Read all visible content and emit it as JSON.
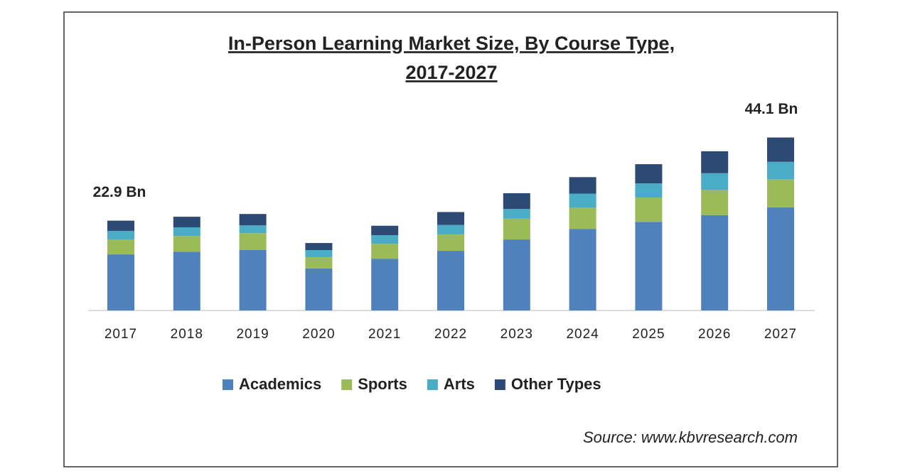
{
  "chart_data": {
    "type": "stacked_bar",
    "title": [
      "In-Person Learning Market Size, By Course Type,",
      "2017-2027"
    ],
    "categories": [
      "2017",
      "2018",
      "2019",
      "2020",
      "2021",
      "2022",
      "2023",
      "2024",
      "2025",
      "2026",
      "2027"
    ],
    "series": [
      {
        "name": "Academics",
        "color": "#4f81bd",
        "values": [
          14.3,
          15.0,
          15.4,
          10.7,
          13.2,
          15.2,
          18.1,
          20.8,
          22.6,
          24.3,
          26.3
        ]
      },
      {
        "name": "Sports",
        "color": "#9bbb59",
        "values": [
          3.8,
          4.0,
          4.3,
          2.9,
          3.8,
          4.2,
          5.3,
          5.4,
          6.2,
          6.5,
          7.1
        ]
      },
      {
        "name": "Arts",
        "color": "#4bacc6",
        "values": [
          2.2,
          2.2,
          2.0,
          1.8,
          2.2,
          2.4,
          2.5,
          3.6,
          3.6,
          4.2,
          4.5
        ]
      },
      {
        "name": "Other Types",
        "color": "#2c4a74",
        "values": [
          2.6,
          2.7,
          2.9,
          1.8,
          2.4,
          3.3,
          4.0,
          4.2,
          4.9,
          5.6,
          6.2
        ]
      }
    ],
    "ylim": [
      0,
      48
    ],
    "annotations": [
      "22.9 Bn",
      "44.1 Bn"
    ],
    "source": "Source: www.kbvresearch.com"
  }
}
